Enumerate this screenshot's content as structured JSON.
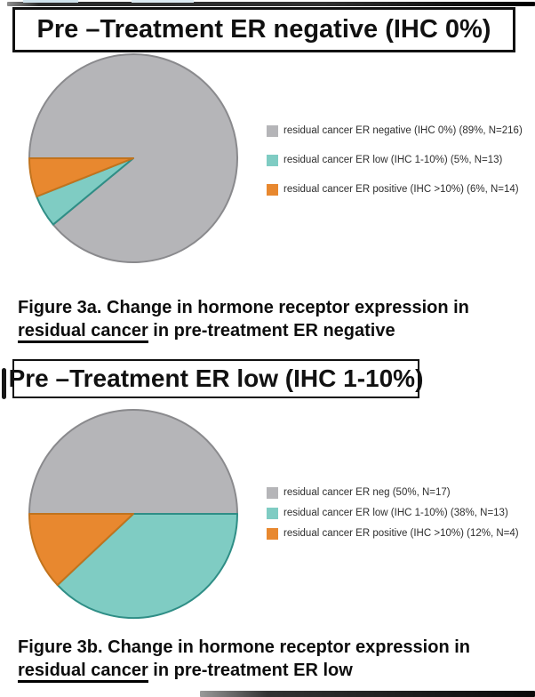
{
  "chart_data": [
    {
      "type": "pie",
      "title": "Pre –Treatment ER negative (IHC 0%)",
      "labels": [
        "residual cancer ER negative (IHC 0%)",
        "residual cancer ER low (IHC 1-10%)",
        "residual cancer ER positive (IHC >10%)"
      ],
      "values": [
        89,
        5,
        6
      ],
      "counts": [
        216,
        13,
        14
      ],
      "legend_labels": [
        "residual cancer ER negative (IHC 0%) (89%, N=216)",
        "residual cancer ER low (IHC 1-10%) (5%, N=13)",
        "residual cancer ER positive (IHC >10%) (6%, N=14)"
      ],
      "colors": [
        "#b5b5b8",
        "#7fccc3",
        "#e8882f"
      ],
      "stroke_colors": [
        "#8a8a8d",
        "#2f8e86",
        "#c1731d"
      ],
      "start_angle_deg": 270,
      "direction": "clockwise",
      "legend_position": "right"
    },
    {
      "type": "pie",
      "title": "Pre –Treatment ER low (IHC 1-10%)",
      "labels": [
        "residual cancer ER neg",
        "residual cancer ER low (IHC 1-10%)",
        "residual cancer ER positive (IHC >10%)"
      ],
      "values": [
        50,
        38,
        12
      ],
      "counts": [
        17,
        13,
        4
      ],
      "legend_labels": [
        "residual cancer ER neg (50%, N=17)",
        "residual cancer ER low (IHC 1-10%) (38%, N=13)",
        "residual cancer ER positive (IHC >10%) (12%, N=4)"
      ],
      "colors": [
        "#b5b5b8",
        "#7fccc3",
        "#e8882f"
      ],
      "stroke_colors": [
        "#8a8a8d",
        "#2f8e86",
        "#c1731d"
      ],
      "start_angle_deg": 270,
      "direction": "clockwise",
      "legend_position": "right"
    }
  ],
  "captions": [
    {
      "line1": "Figure 3a. Change in hormone receptor expression in",
      "underlined": "residual cancer",
      "line2_rest": " in pre-treatment ER negative"
    },
    {
      "line1": "Figure 3b. Change in hormone receptor expression in",
      "underlined": "residual cancer",
      "line2_rest": " in pre-treatment ER low"
    }
  ],
  "colors": {
    "gray_slice": "#b5b5b8",
    "teal_slice": "#7fccc3",
    "orange_slice": "#e8882f",
    "title_border": "#111111",
    "text": "#0d0d0d"
  }
}
